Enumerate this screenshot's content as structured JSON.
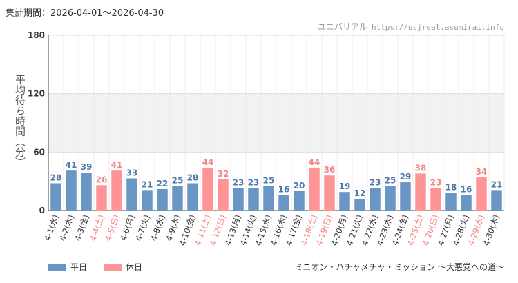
{
  "header": {
    "period": "集計期間：2026-04-01～2026-04-30",
    "site_name": "ユニバリアル",
    "site_url": "https://usjreal.asumirai.info"
  },
  "footer": {
    "caption": "ミニオン・ハチャメチャ・ミッション ～大悪党への道～"
  },
  "colors": {
    "weekday": "#6a96c6",
    "holiday": "#ff9497",
    "holiday_label": "#f08487",
    "weekday_label": "#4f79aa"
  },
  "chart_data": {
    "type": "bar",
    "ylabel": "平均待ち時間（分）",
    "ylim": [
      0,
      180
    ],
    "yticks": [
      0,
      60,
      120,
      180
    ],
    "grid": true,
    "legend_position": "bottom-left",
    "legend": [
      {
        "key": "weekday",
        "label": "平日"
      },
      {
        "key": "holiday",
        "label": "休日"
      }
    ],
    "categories": [
      "4-1(水)",
      "4-2(木)",
      "4-3(金)",
      "4-4(土)",
      "4-5(日)",
      "4-6(月)",
      "4-7(火)",
      "4-8(水)",
      "4-9(木)",
      "4-10(金)",
      "4-11(土)",
      "4-12(日)",
      "4-13(月)",
      "4-14(火)",
      "4-15(水)",
      "4-16(木)",
      "4-17(金)",
      "4-18(土)",
      "4-19(日)",
      "4-20(月)",
      "4-21(火)",
      "4-22(水)",
      "4-23(木)",
      "4-24(金)",
      "4-25(土)",
      "4-26(日)",
      "4-27(月)",
      "4-28(火)",
      "4-29(水)",
      "4-30(木)"
    ],
    "values": [
      28,
      41,
      39,
      26,
      41,
      33,
      21,
      22,
      25,
      28,
      44,
      32,
      23,
      23,
      25,
      16,
      20,
      44,
      36,
      19,
      12,
      23,
      25,
      29,
      38,
      23,
      18,
      16,
      34,
      21
    ],
    "day_type": [
      "weekday",
      "weekday",
      "weekday",
      "holiday",
      "holiday",
      "weekday",
      "weekday",
      "weekday",
      "weekday",
      "weekday",
      "holiday",
      "holiday",
      "weekday",
      "weekday",
      "weekday",
      "weekday",
      "weekday",
      "holiday",
      "holiday",
      "weekday",
      "weekday",
      "weekday",
      "weekday",
      "weekday",
      "holiday",
      "holiday",
      "weekday",
      "weekday",
      "holiday",
      "weekday"
    ]
  }
}
